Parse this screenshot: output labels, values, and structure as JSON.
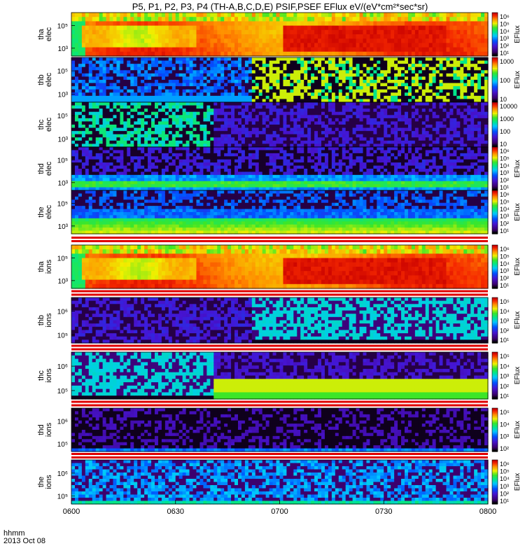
{
  "chart_data": {
    "type": "heatmap",
    "title": "P5, P1, P2, P3, P4 (TH-A,B,C,D,E) PSIF,PSEF EFlux eV/(eV*cm²*sec*sr)",
    "x_axis": {
      "label_line1": "hhmm",
      "label_line2": "2013 Oct 08",
      "ticks": [
        "0600",
        "0630",
        "0700",
        "0730",
        "0800"
      ],
      "range": [
        "06:00",
        "08:00"
      ]
    },
    "colorbar_label": "EFlux",
    "panels": [
      {
        "id": "tha-elec",
        "label": [
          "tha",
          "elec"
        ],
        "yticks": [
          "10⁵",
          "10³"
        ],
        "cbar_ticks": [
          "10⁶",
          "10⁵",
          "10⁴",
          "10³",
          "10²",
          "10¹"
        ],
        "cbar_label": "EFlux",
        "style": "hot",
        "seed": 11
      },
      {
        "id": "thb-elec",
        "label": [
          "thb",
          "elec"
        ],
        "yticks": [
          "10⁵",
          "10³"
        ],
        "cbar_ticks": [
          "1000",
          "100",
          "10"
        ],
        "cbar_label": "EFlux",
        "style": "noisy-split",
        "split_x": 0.43,
        "left_theme": "blue",
        "right_theme": "yellowgreen",
        "seed": 23
      },
      {
        "id": "thc-elec",
        "label": [
          "thc",
          "elec"
        ],
        "yticks": [
          "10⁵",
          "10³"
        ],
        "cbar_ticks": [
          "10000",
          "1000",
          "100",
          "10"
        ],
        "cbar_label": "",
        "style": "noisy-split",
        "split_x": 0.34,
        "left_theme": "green",
        "right_theme": "purple",
        "seed": 37
      },
      {
        "id": "thd-elec",
        "label": [
          "thd",
          "elec"
        ],
        "yticks": [
          "10⁵",
          "10³"
        ],
        "cbar_ticks": [
          "10⁶",
          "10⁵",
          "10⁴",
          "10³",
          "10²",
          "10¹"
        ],
        "cbar_label": "EFlux",
        "style": "band",
        "band_theme": "green",
        "seed": 41
      },
      {
        "id": "the-elec",
        "label": [
          "the",
          "elec"
        ],
        "yticks": [
          "10⁵",
          "10³"
        ],
        "cbar_ticks": [
          "10⁶",
          "10⁵",
          "10⁴",
          "10³",
          "10²",
          "10¹"
        ],
        "cbar_label": "EFlux",
        "style": "band",
        "band_theme": "yellow",
        "seed": 53
      },
      {
        "id": "tha-ions",
        "label": [
          "tha",
          "ions"
        ],
        "yticks": [
          "10⁵",
          "10³"
        ],
        "cbar_ticks": [
          "10⁶",
          "10⁵",
          "10⁴",
          "10³",
          "10²",
          "10¹"
        ],
        "cbar_label": "EFlux",
        "style": "hot",
        "seed": 61
      },
      {
        "id": "thb-ions",
        "label": [
          "thb",
          "ions"
        ],
        "yticks": [
          "10⁶",
          "10⁵"
        ],
        "cbar_ticks": [
          "10⁵",
          "10⁴",
          "10³",
          "10²",
          "10¹"
        ],
        "cbar_label": "EFlux",
        "style": "noisy-split",
        "split_x": 0.43,
        "left_theme": "purple",
        "right_theme": "cyan",
        "seed": 71
      },
      {
        "id": "thc-ions",
        "label": [
          "thc",
          "ions"
        ],
        "yticks": [
          "10⁶",
          "10⁵"
        ],
        "cbar_ticks": [
          "10⁵",
          "10⁴",
          "10³",
          "10²",
          "10¹"
        ],
        "cbar_label": "EFlux",
        "style": "noisy-split",
        "split_x": 0.34,
        "left_theme": "cyan",
        "right_theme": "purple-yellow",
        "seed": 83
      },
      {
        "id": "thd-ions",
        "label": [
          "thd",
          "ions"
        ],
        "yticks": [
          "10⁶",
          "10⁵"
        ],
        "cbar_ticks": [
          "10⁵",
          "10⁴",
          "10³",
          "10²"
        ],
        "cbar_label": "EFlux",
        "style": "sparse",
        "seed": 97
      },
      {
        "id": "the-ions",
        "label": [
          "the",
          "ions"
        ],
        "yticks": [
          "10⁶",
          "10⁵"
        ],
        "cbar_ticks": [
          "10⁶",
          "10⁵",
          "10⁴",
          "10³",
          "10²",
          "10¹"
        ],
        "cbar_label": "EFlux",
        "style": "band",
        "band_theme": "cyan-noise",
        "seed": 101
      }
    ]
  }
}
